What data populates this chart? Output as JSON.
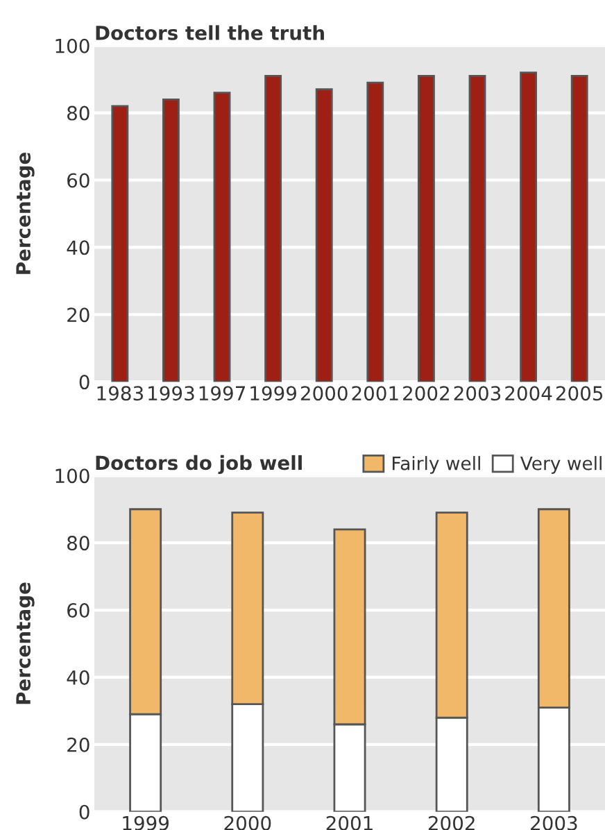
{
  "chart_data": [
    {
      "type": "bar",
      "title": "Doctors tell the truth",
      "ylabel": "Percentage",
      "categories": [
        "1983",
        "1993",
        "1997",
        "1999",
        "2000",
        "2001",
        "2002",
        "2003",
        "2004",
        "2005"
      ],
      "series": [
        {
          "color": "#9e1f14",
          "values": [
            82,
            84,
            86,
            91,
            87,
            89,
            91,
            91,
            92,
            91
          ]
        }
      ],
      "ylim": [
        0,
        100
      ],
      "yticks": [
        0,
        20,
        40,
        60,
        80,
        100
      ],
      "grid": "y",
      "legend": false
    },
    {
      "type": "bar",
      "title": "Doctors do job well",
      "ylabel": "Percentage",
      "categories": [
        "1999",
        "2000",
        "2001",
        "2002",
        "2003"
      ],
      "stacked": true,
      "series": [
        {
          "name": "Very well",
          "color": "#ffffff",
          "values": [
            29,
            32,
            26,
            28,
            31
          ]
        },
        {
          "name": "Fairly well",
          "color": "#f2b86a",
          "values": [
            61,
            57,
            58,
            61,
            59
          ]
        }
      ],
      "ylim": [
        0,
        100
      ],
      "yticks": [
        0,
        20,
        40,
        60,
        80,
        100
      ],
      "grid": "y",
      "legend": "top right"
    }
  ]
}
